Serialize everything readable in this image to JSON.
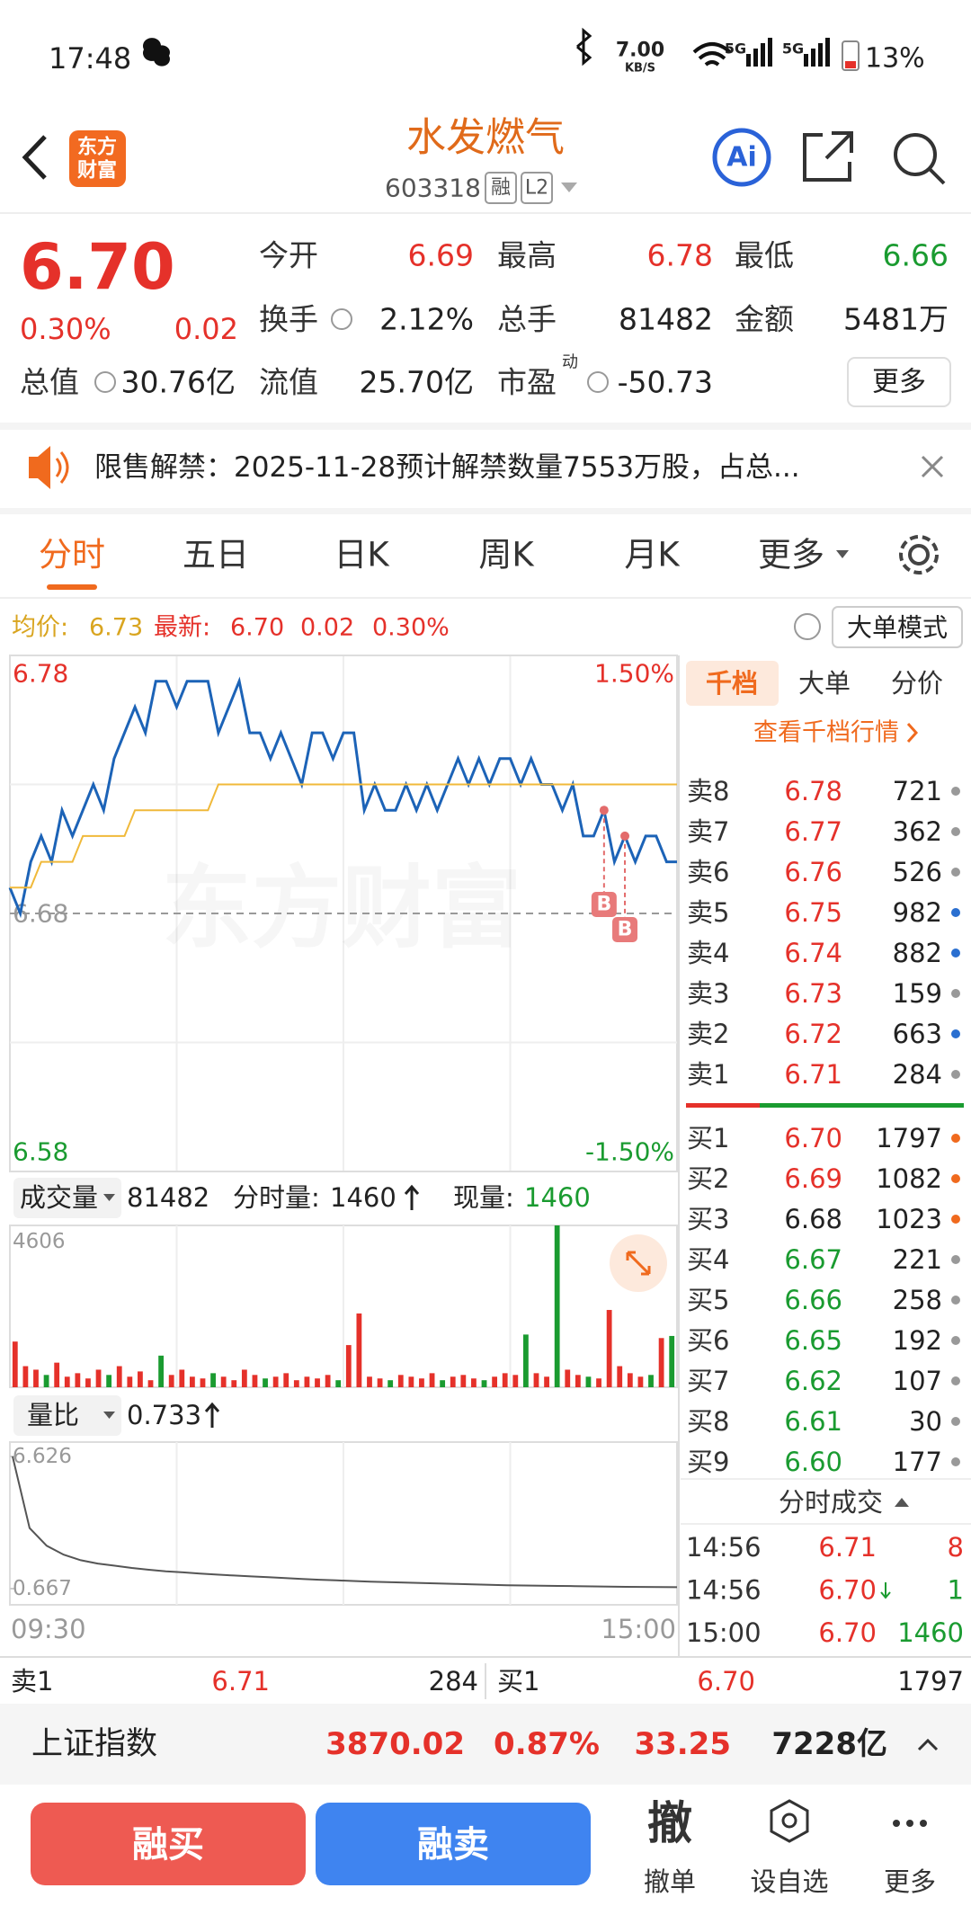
{
  "status_bar": {
    "time": "17:48",
    "speed": "7.00",
    "speed_unit": "KB/S",
    "network": [
      "5G",
      "5G"
    ],
    "battery": "13%"
  },
  "header": {
    "logo": [
      "东方",
      "财富"
    ],
    "title": "水发燃气",
    "code": "603318",
    "tags": [
      "融",
      "L2"
    ],
    "ai": "Ai"
  },
  "quote": {
    "price": "6.70",
    "change_pct": "0.30%",
    "change": "0.02",
    "color": "#e5312a",
    "fields": [
      {
        "label": "今开",
        "value": "6.69",
        "color": "#e5312a"
      },
      {
        "label": "最高",
        "value": "6.78",
        "color": "#e5312a"
      },
      {
        "label": "最低",
        "value": "6.66",
        "color": "#1a9b30"
      },
      {
        "label": "换手",
        "value": "2.12%",
        "color": "#222222"
      },
      {
        "label": "总手",
        "value": "81482",
        "color": "#222222"
      },
      {
        "label": "金额",
        "value": "5481万",
        "color": "#222222"
      },
      {
        "label": "总值",
        "value": "30.76亿",
        "color": "#222222"
      },
      {
        "label": "流值",
        "value": "25.70亿",
        "color": "#222222"
      },
      {
        "label": "市盈",
        "sup": "动",
        "value": "-50.73",
        "color": "#222222"
      }
    ],
    "more": "更多"
  },
  "notice": "限售解禁：2025-11-28预计解禁数量7553万股，占总...",
  "tabs": [
    "分时",
    "五日",
    "日K",
    "周K",
    "月K",
    "更多"
  ],
  "info": {
    "avg_label": "均价:",
    "avg": "6.73",
    "latest_label": "最新:",
    "latest": "6.70",
    "change": "0.02",
    "change_pct": "0.30%",
    "mode": "大单模式"
  },
  "chart_data": [
    {
      "type": "line",
      "ylim": [
        6.58,
        6.78
      ],
      "yticks": [
        6.78,
        6.68,
        6.58
      ],
      "tick_colors": [
        "#e5312a",
        "#999999",
        "#1a9b30"
      ],
      "y2lim": [
        -1.5,
        1.5
      ],
      "y2ticks": [
        {
          "value": 1.5,
          "label": "1.50%"
        },
        {
          "value": -1.5,
          "label": "-1.50%"
        }
      ],
      "y2tick_colors": [
        "#e5312a",
        "#1a9b30"
      ],
      "watermark": "东方财富",
      "series": [
        {
          "color": "#1c63b7",
          "values": [
            6.69,
            6.68,
            6.7,
            6.71,
            6.7,
            6.72,
            6.71,
            6.72,
            6.73,
            6.72,
            6.74,
            6.75,
            6.76,
            6.75,
            6.77,
            6.77,
            6.76,
            6.77,
            6.77,
            6.77,
            6.75,
            6.76,
            6.77,
            6.75,
            6.75,
            6.74,
            6.75,
            6.74,
            6.73,
            6.75,
            6.75,
            6.74,
            6.75,
            6.75,
            6.72,
            6.73,
            6.72,
            6.72,
            6.73,
            6.72,
            6.73,
            6.72,
            6.73,
            6.74,
            6.73,
            6.74,
            6.73,
            6.74,
            6.74,
            6.73,
            6.74,
            6.73,
            6.73,
            6.72,
            6.73,
            6.71,
            6.71,
            6.72,
            6.7,
            6.71,
            6.7,
            6.71,
            6.71,
            6.7,
            6.7
          ]
        },
        {
          "color": "#f0b93a",
          "values": [
            6.69,
            6.69,
            6.69,
            6.7,
            6.7,
            6.7,
            6.7,
            6.71,
            6.71,
            6.71,
            6.71,
            6.71,
            6.72,
            6.72,
            6.72,
            6.72,
            6.72,
            6.72,
            6.72,
            6.72,
            6.73,
            6.73,
            6.73,
            6.73,
            6.73,
            6.73,
            6.73,
            6.73,
            6.73,
            6.73,
            6.73,
            6.73,
            6.73,
            6.73,
            6.73,
            6.73,
            6.73,
            6.73,
            6.73,
            6.73,
            6.73,
            6.73,
            6.73,
            6.73,
            6.73,
            6.73,
            6.73,
            6.73,
            6.73,
            6.73,
            6.73,
            6.73,
            6.73,
            6.73,
            6.73,
            6.73,
            6.73,
            6.73,
            6.73,
            6.73,
            6.73,
            6.73,
            6.73,
            6.73,
            6.73
          ]
        }
      ],
      "annotations": [
        {
          "x": 57,
          "y": 6.72,
          "label": "B"
        },
        {
          "x": 59,
          "y": 6.71,
          "label": "B"
        }
      ]
    },
    {
      "type": "bar",
      "ylim": [
        0,
        4606
      ],
      "yticks": [
        4606
      ],
      "values": [
        1300,
        600,
        500,
        350,
        700,
        300,
        400,
        250,
        500,
        350,
        600,
        300,
        450,
        200,
        900,
        350,
        500,
        300,
        250,
        400,
        300,
        200,
        500,
        350,
        250,
        300,
        400,
        200,
        300,
        250,
        350,
        200,
        1200,
        2100,
        300,
        250,
        200,
        350,
        300,
        250,
        400,
        200,
        300,
        350,
        250,
        200,
        300,
        400,
        350,
        1500,
        400,
        300,
        4606,
        500,
        350,
        300,
        250,
        2200,
        600,
        400,
        300,
        350,
        1400,
        1460
      ],
      "colors": [
        "#e5312a",
        "#e5312a",
        "#e5312a",
        "#1a9b30",
        "#e5312a",
        "#e5312a",
        "#e5312a",
        "#e5312a",
        "#e5312a",
        "#1a9b30",
        "#e5312a",
        "#e5312a",
        "#e5312a",
        "#e5312a",
        "#1a9b30",
        "#e5312a",
        "#e5312a",
        "#e5312a",
        "#e5312a",
        "#1a9b30",
        "#e5312a",
        "#e5312a",
        "#e5312a",
        "#e5312a",
        "#1a9b30",
        "#e5312a",
        "#e5312a",
        "#e5312a",
        "#e5312a",
        "#e5312a",
        "#e5312a",
        "#1a9b30",
        "#e5312a",
        "#e5312a",
        "#e5312a",
        "#e5312a",
        "#1a9b30",
        "#e5312a",
        "#e5312a",
        "#e5312a",
        "#e5312a",
        "#1a9b30",
        "#e5312a",
        "#e5312a",
        "#e5312a",
        "#1a9b30",
        "#e5312a",
        "#e5312a",
        "#e5312a",
        "#1a9b30",
        "#e5312a",
        "#e5312a",
        "#1a9b30",
        "#e5312a",
        "#e5312a",
        "#1a9b30",
        "#e5312a",
        "#e5312a",
        "#e5312a",
        "#e5312a",
        "#e5312a",
        "#1a9b30",
        "#e5312a",
        "#1a9b30"
      ]
    },
    {
      "type": "line",
      "ylim": [
        0.667,
        6.626
      ],
      "yticks": [
        6.626,
        0.667
      ],
      "x_labels": [
        "09:30",
        "15:00"
      ],
      "series": [
        {
          "color": "#555555",
          "values": [
            6.626,
            3.4,
            2.6,
            2.2,
            1.95,
            1.8,
            1.7,
            1.6,
            1.52,
            1.45,
            1.4,
            1.35,
            1.3,
            1.26,
            1.22,
            1.18,
            1.14,
            1.1,
            1.07,
            1.04,
            1.01,
            0.98,
            0.96,
            0.94,
            0.92,
            0.9,
            0.88,
            0.86,
            0.84,
            0.82,
            0.81,
            0.8,
            0.79,
            0.78,
            0.77,
            0.76,
            0.75,
            0.745,
            0.74,
            0.733
          ]
        }
      ]
    }
  ],
  "volume_header": {
    "label": "成交量",
    "total": "81482",
    "minute_label": "分时量:",
    "minute": "1460",
    "current_label": "现量:",
    "current": "1460"
  },
  "ratio_header": {
    "label": "量比",
    "value": "0.733"
  },
  "order_book": {
    "tabs": [
      "千档",
      "大单",
      "分价"
    ],
    "link": "查看千档行情",
    "asks": [
      {
        "label": "卖8",
        "price": "6.78",
        "volume": "721",
        "color": "#e5312a",
        "dot": "#999999"
      },
      {
        "label": "卖7",
        "price": "6.77",
        "volume": "362",
        "color": "#e5312a",
        "dot": "#999999"
      },
      {
        "label": "卖6",
        "price": "6.76",
        "volume": "526",
        "color": "#e5312a",
        "dot": "#999999"
      },
      {
        "label": "卖5",
        "price": "6.75",
        "volume": "982",
        "color": "#e5312a",
        "dot": "#2a6fd0"
      },
      {
        "label": "卖4",
        "price": "6.74",
        "volume": "882",
        "color": "#e5312a",
        "dot": "#2a6fd0"
      },
      {
        "label": "卖3",
        "price": "6.73",
        "volume": "159",
        "color": "#e5312a",
        "dot": "#999999"
      },
      {
        "label": "卖2",
        "price": "6.72",
        "volume": "663",
        "color": "#e5312a",
        "dot": "#2a6fd0"
      },
      {
        "label": "卖1",
        "price": "6.71",
        "volume": "284",
        "color": "#e5312a",
        "dot": "#999999"
      }
    ],
    "bids": [
      {
        "label": "买1",
        "price": "6.70",
        "volume": "1797",
        "color": "#e5312a",
        "dot": "#f06a1e"
      },
      {
        "label": "买2",
        "price": "6.69",
        "volume": "1082",
        "color": "#e5312a",
        "dot": "#f06a1e"
      },
      {
        "label": "买3",
        "price": "6.68",
        "volume": "1023",
        "color": "#222222",
        "dot": "#f06a1e"
      },
      {
        "label": "买4",
        "price": "6.67",
        "volume": "221",
        "color": "#1a9b30",
        "dot": "#999999"
      },
      {
        "label": "买5",
        "price": "6.66",
        "volume": "258",
        "color": "#1a9b30",
        "dot": "#999999"
      },
      {
        "label": "买6",
        "price": "6.65",
        "volume": "192",
        "color": "#1a9b30",
        "dot": "#999999"
      },
      {
        "label": "买7",
        "price": "6.62",
        "volume": "107",
        "color": "#1a9b30",
        "dot": "#999999"
      },
      {
        "label": "买8",
        "price": "6.61",
        "volume": "30",
        "color": "#1a9b30",
        "dot": "#999999"
      },
      {
        "label": "买9",
        "price": "6.60",
        "volume": "177",
        "color": "#1a9b30",
        "dot": "#999999"
      }
    ],
    "trades_title": "分时成交",
    "trades": [
      {
        "time": "14:56",
        "price": "6.71",
        "volume": "8",
        "color": "#e5312a",
        "vcolor": "#e5312a"
      },
      {
        "time": "14:56",
        "price": "6.70",
        "volume": "1",
        "color": "#e5312a",
        "vcolor": "#1a9b30"
      },
      {
        "time": "15:00",
        "price": "6.70",
        "volume": "1460",
        "color": "#e5312a",
        "vcolor": "#1a9b30"
      }
    ]
  },
  "bottom_quote": {
    "ask_label": "卖1",
    "ask_price": "6.71",
    "ask_volume": "284",
    "bid_label": "买1",
    "bid_price": "6.70",
    "bid_volume": "1797"
  },
  "index_bar": {
    "name": "上证指数",
    "value": "3870.02",
    "change_pct": "0.87%",
    "change": "33.25",
    "amount": "7228亿"
  },
  "actions": {
    "buy": "融买",
    "sell": "融卖",
    "cancel_icon": "撤",
    "cancel": "撤单",
    "watch": "设自选",
    "more": "更多"
  }
}
